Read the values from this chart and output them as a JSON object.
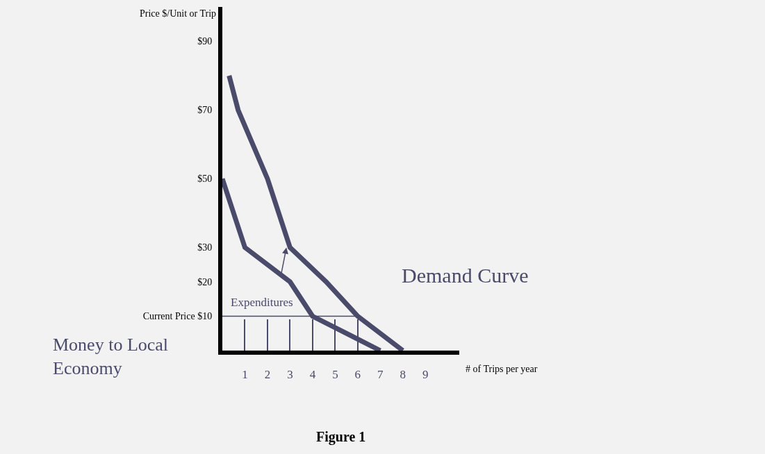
{
  "chart_data": {
    "type": "line",
    "title": "Figure 1",
    "xlabel": "# of Trips per year",
    "ylabel": "Price $/Unit or Trip",
    "xlim": [
      0,
      10.5
    ],
    "xticks": [
      1,
      2,
      3,
      4,
      5,
      6,
      7,
      8,
      9
    ],
    "ylim": [
      0,
      100
    ],
    "yticks": [
      {
        "value": 90,
        "label": "$90"
      },
      {
        "value": 70,
        "label": "$70"
      },
      {
        "value": 50,
        "label": "$50"
      },
      {
        "value": 30,
        "label": "$30"
      },
      {
        "value": 20,
        "label": "$20"
      },
      {
        "value": 10,
        "label": "Current Price $10"
      }
    ],
    "grid": false,
    "marker": "none",
    "series": [
      {
        "color": "#4a4a6a",
        "x": [
          0,
          1,
          3,
          4,
          7
        ],
        "values": [
          50,
          30,
          20,
          10,
          0
        ]
      },
      {
        "color": "#4a4a6a",
        "x": [
          0.3,
          0.7,
          2,
          3,
          4.6,
          6,
          8
        ],
        "values": [
          80,
          70,
          50,
          30,
          20,
          10,
          0
        ]
      },
      {
        "color": "#4a4a6a",
        "x": [
          0,
          6
        ],
        "values": [
          10,
          10
        ]
      },
      {
        "type": "bar",
        "color": "#4a4a6a",
        "x": [
          1,
          2,
          3,
          4,
          5,
          6
        ],
        "values": [
          9,
          9,
          9,
          9,
          9,
          9
        ]
      }
    ],
    "annotations": [
      "Demand Curve",
      "Money to Local Economy",
      "Expenditures"
    ]
  }
}
